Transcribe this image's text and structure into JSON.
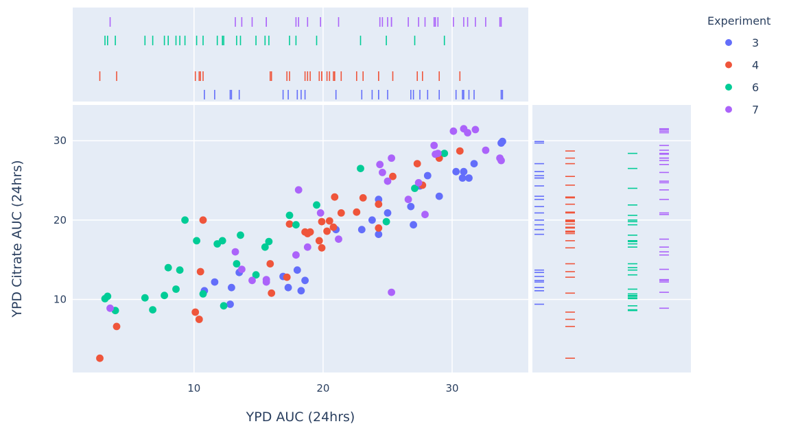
{
  "chart_data": {
    "type": "scatter",
    "xlabel": "YPD AUC (24hrs)",
    "ylabel": "YPD Citrate AUC (24hrs)",
    "xlim": [
      0.6,
      35.9
    ],
    "ylim": [
      0.8,
      34.5
    ],
    "x_ticks": [
      10,
      20,
      30
    ],
    "y_ticks": [
      10,
      20,
      30
    ],
    "grid": true,
    "legend_position": "top-right",
    "marginal_x": "rug",
    "marginal_y": "rug",
    "legend_title": "Experiment",
    "colors": {
      "3": "#636efa",
      "4": "#ef553b",
      "6": "#00cc96",
      "7": "#ab63fa",
      "plot_bg": "#e5ecf6",
      "grid": "#ffffff",
      "text": "#2a3f5f"
    },
    "series": [
      {
        "name": "3",
        "points": [
          [
            10.8,
            11.1
          ],
          [
            11.6,
            12.2
          ],
          [
            12.8,
            9.4
          ],
          [
            12.9,
            11.5
          ],
          [
            13.5,
            13.4
          ],
          [
            16.9,
            12.9
          ],
          [
            17.3,
            11.5
          ],
          [
            18.0,
            13.7
          ],
          [
            18.3,
            11.1
          ],
          [
            18.6,
            12.4
          ],
          [
            21.0,
            18.8
          ],
          [
            23.0,
            18.8
          ],
          [
            23.8,
            20.0
          ],
          [
            24.3,
            18.2
          ],
          [
            24.3,
            22.6
          ],
          [
            25.0,
            20.9
          ],
          [
            26.8,
            21.7
          ],
          [
            27.0,
            19.4
          ],
          [
            27.5,
            24.3
          ],
          [
            28.1,
            25.6
          ],
          [
            29.0,
            23.0
          ],
          [
            30.3,
            26.1
          ],
          [
            30.8,
            25.3
          ],
          [
            30.9,
            26.1
          ],
          [
            31.3,
            25.3
          ],
          [
            31.7,
            27.1
          ],
          [
            33.8,
            29.7
          ],
          [
            33.9,
            29.9
          ]
        ]
      },
      {
        "name": "4",
        "points": [
          [
            2.7,
            2.6
          ],
          [
            4.0,
            6.6
          ],
          [
            10.1,
            8.4
          ],
          [
            10.4,
            7.5
          ],
          [
            10.5,
            13.5
          ],
          [
            10.7,
            20.0
          ],
          [
            15.9,
            14.5
          ],
          [
            16.0,
            10.8
          ],
          [
            17.2,
            12.8
          ],
          [
            17.4,
            19.5
          ],
          [
            18.6,
            18.5
          ],
          [
            18.8,
            18.3
          ],
          [
            19.0,
            18.5
          ],
          [
            19.7,
            17.4
          ],
          [
            19.9,
            19.8
          ],
          [
            19.9,
            16.5
          ],
          [
            20.3,
            18.6
          ],
          [
            20.5,
            19.9
          ],
          [
            20.8,
            19.1
          ],
          [
            20.9,
            22.9
          ],
          [
            21.4,
            20.9
          ],
          [
            22.6,
            21.0
          ],
          [
            23.1,
            22.8
          ],
          [
            24.3,
            22.0
          ],
          [
            24.3,
            19.0
          ],
          [
            25.4,
            25.5
          ],
          [
            27.3,
            27.1
          ],
          [
            27.7,
            24.4
          ],
          [
            29.0,
            27.8
          ],
          [
            30.6,
            28.7
          ]
        ]
      },
      {
        "name": "6",
        "points": [
          [
            3.1,
            10.1
          ],
          [
            3.3,
            10.4
          ],
          [
            3.9,
            8.6
          ],
          [
            6.2,
            10.2
          ],
          [
            6.8,
            8.7
          ],
          [
            7.7,
            10.5
          ],
          [
            8.0,
            14.0
          ],
          [
            8.6,
            11.3
          ],
          [
            8.9,
            13.7
          ],
          [
            9.3,
            20.0
          ],
          [
            10.2,
            17.4
          ],
          [
            10.7,
            10.7
          ],
          [
            11.8,
            17.0
          ],
          [
            12.2,
            17.4
          ],
          [
            12.3,
            9.2
          ],
          [
            13.3,
            14.5
          ],
          [
            13.6,
            18.1
          ],
          [
            14.8,
            13.1
          ],
          [
            15.5,
            16.6
          ],
          [
            15.8,
            17.3
          ],
          [
            17.4,
            20.6
          ],
          [
            17.9,
            19.4
          ],
          [
            19.5,
            21.9
          ],
          [
            22.9,
            26.5
          ],
          [
            24.9,
            19.8
          ],
          [
            27.1,
            24.0
          ],
          [
            29.4,
            28.4
          ]
        ]
      },
      {
        "name": "7",
        "points": [
          [
            3.5,
            8.9
          ],
          [
            13.2,
            16.0
          ],
          [
            13.7,
            13.8
          ],
          [
            14.5,
            12.4
          ],
          [
            15.6,
            12.5
          ],
          [
            15.6,
            12.2
          ],
          [
            17.9,
            15.6
          ],
          [
            18.1,
            23.8
          ],
          [
            18.8,
            16.6
          ],
          [
            19.8,
            20.9
          ],
          [
            21.2,
            17.6
          ],
          [
            24.4,
            27.0
          ],
          [
            24.6,
            26.0
          ],
          [
            25.0,
            24.9
          ],
          [
            25.3,
            27.8
          ],
          [
            25.3,
            10.9
          ],
          [
            26.6,
            22.6
          ],
          [
            27.4,
            24.7
          ],
          [
            27.9,
            20.7
          ],
          [
            28.6,
            29.4
          ],
          [
            28.7,
            28.3
          ],
          [
            28.9,
            28.4
          ],
          [
            30.1,
            31.2
          ],
          [
            30.9,
            31.5
          ],
          [
            31.2,
            31.0
          ],
          [
            31.8,
            31.4
          ],
          [
            32.6,
            28.8
          ],
          [
            33.7,
            27.8
          ],
          [
            33.8,
            27.5
          ]
        ]
      }
    ]
  }
}
